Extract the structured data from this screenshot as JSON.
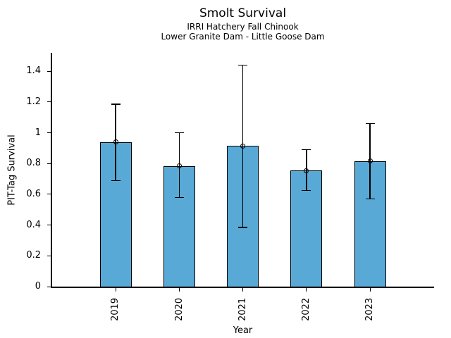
{
  "chart_data": {
    "type": "bar",
    "title": "Smolt Survival",
    "subtitle_line1": "IRRI Hatchery Fall Chinook",
    "subtitle_line2": "Lower Granite Dam - Little Goose Dam",
    "xlabel": "Year",
    "ylabel": "PIT-Tag Survival",
    "categories": [
      "2019",
      "2020",
      "2021",
      "2022",
      "2023"
    ],
    "series": [
      {
        "name": "PIT-Tag Survival",
        "values": [
          0.94,
          0.785,
          0.915,
          0.755,
          0.815
        ],
        "error_low": [
          0.69,
          0.58,
          0.385,
          0.625,
          0.57
        ],
        "error_high": [
          1.185,
          1.0,
          1.44,
          0.89,
          1.06
        ]
      }
    ],
    "marker": "open-circle",
    "yticks": [
      0,
      0.2,
      0.4,
      0.6,
      0.8,
      1,
      1.2,
      1.4
    ],
    "ytick_labels": [
      "0",
      "0.2",
      "0.4",
      "0.6",
      "0.8",
      "1",
      "1.2",
      "1.4"
    ],
    "ylim": [
      0,
      1.52
    ],
    "grid": false,
    "legend": null,
    "colors": {
      "bar_fill": "#58A9D5",
      "bar_edge": "#000000",
      "error_bar": "#000000",
      "axis": "#000000",
      "text": "#000000",
      "background": "#ffffff"
    }
  }
}
